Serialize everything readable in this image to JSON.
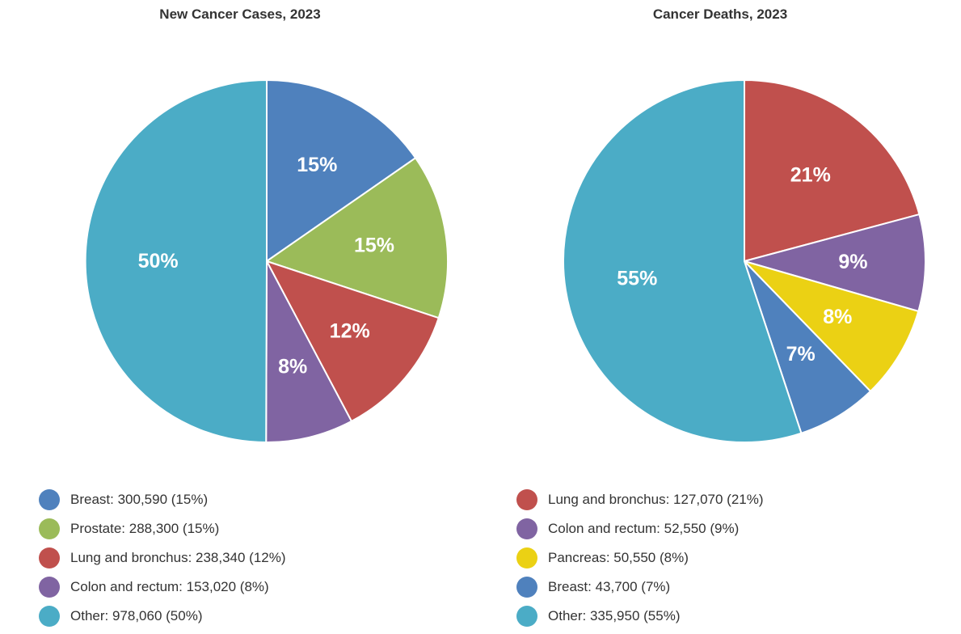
{
  "chart_data": [
    {
      "type": "pie",
      "title": "New Cancer Cases, 2023",
      "slices": [
        {
          "label": "Breast",
          "value": 300590,
          "value_text": "300,590",
          "percent": "15%",
          "color": "#4F81BD"
        },
        {
          "label": "Prostate",
          "value": 288300,
          "value_text": "288,300",
          "percent": "15%",
          "color": "#9BBB59"
        },
        {
          "label": "Lung and bronchus",
          "value": 238340,
          "value_text": "238,340",
          "percent": "12%",
          "color": "#C0504D"
        },
        {
          "label": "Colon and rectum",
          "value": 153020,
          "value_text": "153,020",
          "percent": "8%",
          "color": "#8064A2"
        },
        {
          "label": "Other",
          "value": 978060,
          "value_text": "978,060",
          "percent": "50%",
          "color": "#4BACC6"
        }
      ],
      "legend_position": "bottom"
    },
    {
      "type": "pie",
      "title": "Cancer Deaths, 2023",
      "slices": [
        {
          "label": "Lung and bronchus",
          "value": 127070,
          "value_text": "127,070",
          "percent": "21%",
          "color": "#C0504D"
        },
        {
          "label": "Colon and rectum",
          "value": 52550,
          "value_text": "52,550",
          "percent": "9%",
          "color": "#8064A2"
        },
        {
          "label": "Pancreas",
          "value": 50550,
          "value_text": "50,550",
          "percent": "8%",
          "color": "#EBD114"
        },
        {
          "label": "Breast",
          "value": 43700,
          "value_text": "43,700",
          "percent": "7%",
          "color": "#4F81BD"
        },
        {
          "label": "Other",
          "value": 335950,
          "value_text": "335,950",
          "percent": "55%",
          "color": "#4BACC6"
        }
      ],
      "legend_position": "bottom"
    }
  ]
}
